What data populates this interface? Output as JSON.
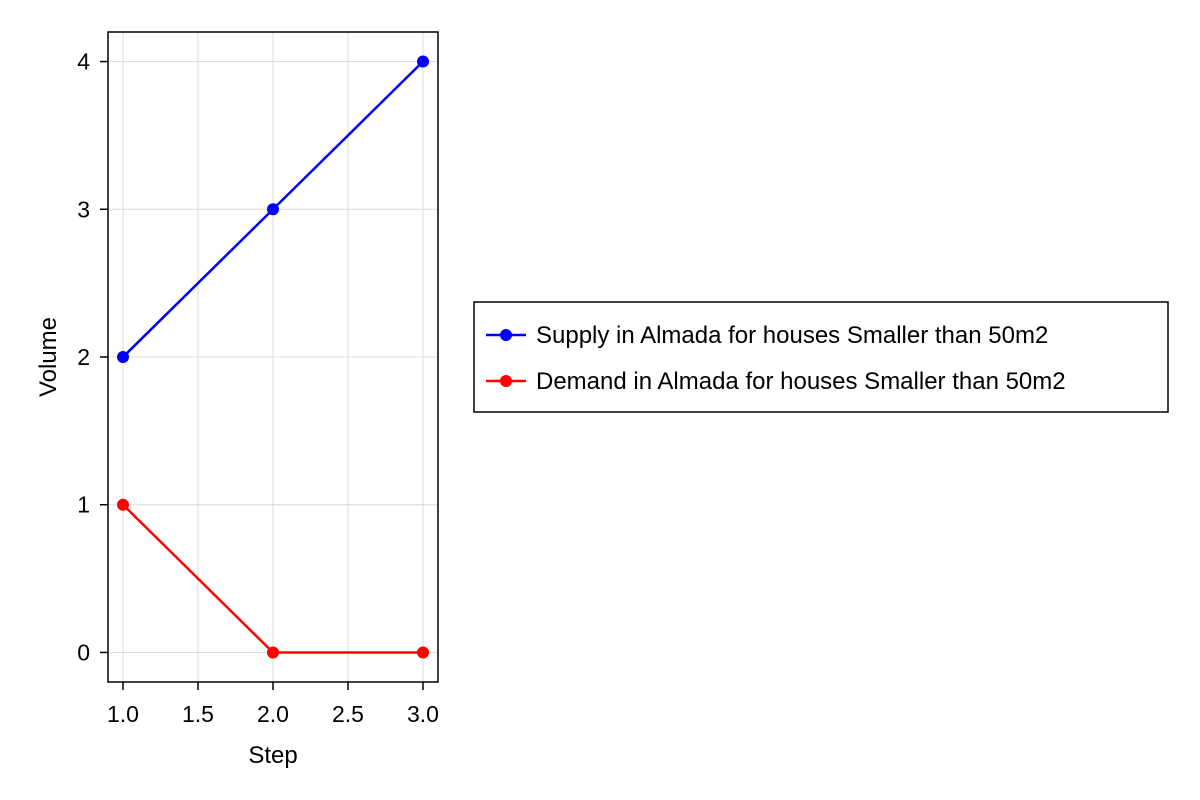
{
  "chart_data": {
    "type": "line",
    "title": "",
    "xlabel": "Step",
    "ylabel": "Volume",
    "xlim": [
      0.9,
      3.1
    ],
    "ylim": [
      -0.2,
      4.2
    ],
    "x_ticks": [
      1.0,
      1.5,
      2.0,
      2.5,
      3.0
    ],
    "x_tick_labels": [
      "1.0",
      "1.5",
      "2.0",
      "2.5",
      "3.0"
    ],
    "y_ticks": [
      0,
      1,
      2,
      3,
      4
    ],
    "y_tick_labels": [
      "0",
      "1",
      "2",
      "3",
      "4"
    ],
    "grid": true,
    "legend_position": "right",
    "series": [
      {
        "name": "Supply in Almada for houses Smaller than 50m2",
        "color": "#0000ff",
        "x": [
          1,
          2,
          3
        ],
        "y": [
          2,
          3,
          4
        ]
      },
      {
        "name": "Demand in Almada for houses Smaller than 50m2",
        "color": "#ff0000",
        "x": [
          1,
          2,
          3
        ],
        "y": [
          1,
          0,
          0
        ]
      }
    ]
  }
}
